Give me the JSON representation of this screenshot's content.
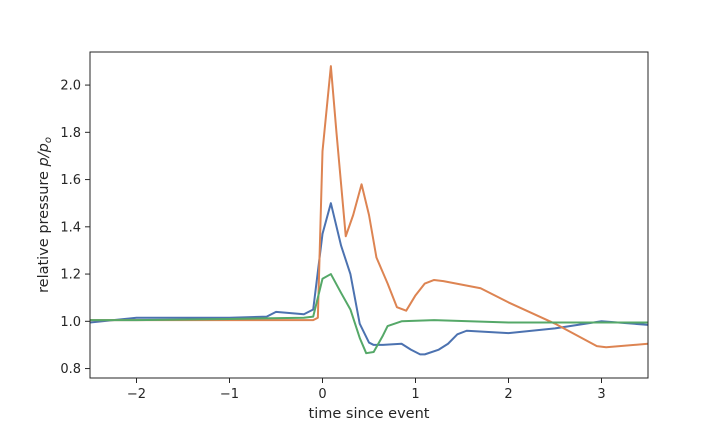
{
  "chart_data": {
    "type": "line",
    "title": "",
    "xlabel": "time since event",
    "ylabel_text": "relative pressure ",
    "ylabel_math": "p/p",
    "ylabel_sub": "o",
    "xlim": [
      -2.5,
      3.5
    ],
    "ylim": [
      0.76,
      2.14
    ],
    "grid": false,
    "xticks": [
      -2,
      -1,
      0,
      1,
      2,
      3
    ],
    "xtick_labels": [
      "−2",
      "−1",
      "0",
      "1",
      "2",
      "3"
    ],
    "yticks": [
      0.8,
      1.0,
      1.2,
      1.4,
      1.6,
      1.8,
      2.0
    ],
    "ytick_labels": [
      "0.8",
      "1.0",
      "1.2",
      "1.4",
      "1.6",
      "1.8",
      "2.0"
    ],
    "series": [
      {
        "color": "#4c72b0",
        "points": [
          [
            -2.5,
            0.995
          ],
          [
            -2.0,
            1.015
          ],
          [
            -1.0,
            1.015
          ],
          [
            -0.6,
            1.02
          ],
          [
            -0.5,
            1.04
          ],
          [
            -0.2,
            1.03
          ],
          [
            -0.1,
            1.05
          ],
          [
            0.0,
            1.37
          ],
          [
            0.09,
            1.5
          ],
          [
            0.2,
            1.32
          ],
          [
            0.3,
            1.2
          ],
          [
            0.4,
            0.99
          ],
          [
            0.5,
            0.91
          ],
          [
            0.55,
            0.9
          ],
          [
            0.65,
            0.9
          ],
          [
            0.85,
            0.905
          ],
          [
            0.95,
            0.88
          ],
          [
            1.05,
            0.86
          ],
          [
            1.1,
            0.86
          ],
          [
            1.25,
            0.88
          ],
          [
            1.35,
            0.905
          ],
          [
            1.45,
            0.945
          ],
          [
            1.55,
            0.96
          ],
          [
            2.0,
            0.95
          ],
          [
            2.5,
            0.97
          ],
          [
            3.0,
            1.0
          ],
          [
            3.5,
            0.985
          ]
        ]
      },
      {
        "color": "#dd8452",
        "points": [
          [
            -2.5,
            1.005
          ],
          [
            -2.0,
            1.005
          ],
          [
            -1.0,
            1.005
          ],
          [
            -0.1,
            1.005
          ],
          [
            -0.05,
            1.015
          ],
          [
            0.0,
            1.72
          ],
          [
            0.09,
            2.08
          ],
          [
            0.15,
            1.8
          ],
          [
            0.25,
            1.36
          ],
          [
            0.33,
            1.45
          ],
          [
            0.42,
            1.58
          ],
          [
            0.5,
            1.45
          ],
          [
            0.58,
            1.27
          ],
          [
            0.7,
            1.16
          ],
          [
            0.8,
            1.06
          ],
          [
            0.9,
            1.045
          ],
          [
            1.0,
            1.11
          ],
          [
            1.1,
            1.16
          ],
          [
            1.2,
            1.175
          ],
          [
            1.3,
            1.17
          ],
          [
            1.7,
            1.14
          ],
          [
            2.0,
            1.08
          ],
          [
            2.5,
            0.99
          ],
          [
            2.95,
            0.895
          ],
          [
            3.05,
            0.89
          ],
          [
            3.5,
            0.905
          ]
        ]
      },
      {
        "color": "#55a868",
        "points": [
          [
            -2.5,
            1.005
          ],
          [
            -2.0,
            1.005
          ],
          [
            -1.0,
            1.01
          ],
          [
            -0.2,
            1.015
          ],
          [
            -0.1,
            1.02
          ],
          [
            0.0,
            1.18
          ],
          [
            0.09,
            1.2
          ],
          [
            0.2,
            1.12
          ],
          [
            0.3,
            1.05
          ],
          [
            0.4,
            0.93
          ],
          [
            0.47,
            0.865
          ],
          [
            0.55,
            0.87
          ],
          [
            0.65,
            0.94
          ],
          [
            0.7,
            0.98
          ],
          [
            0.85,
            1.0
          ],
          [
            1.2,
            1.005
          ],
          [
            2.0,
            0.995
          ],
          [
            3.0,
            0.995
          ],
          [
            3.5,
            0.995
          ]
        ]
      }
    ]
  }
}
